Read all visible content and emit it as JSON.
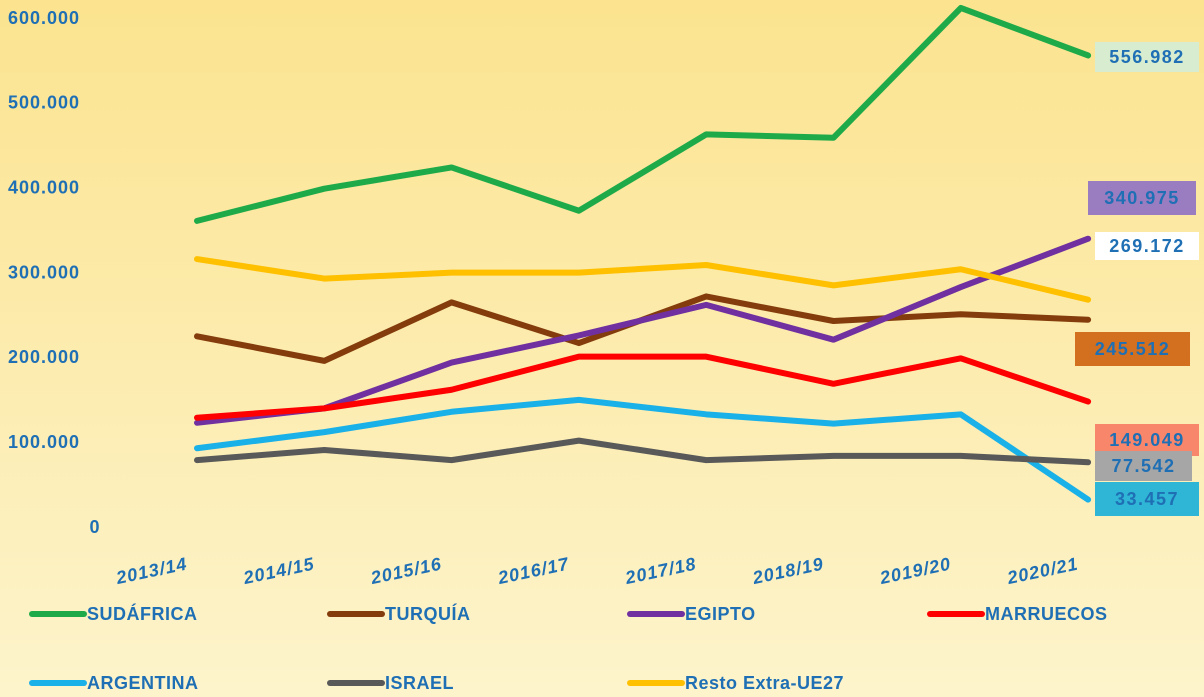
{
  "chart_data": {
    "type": "line",
    "categories": [
      "2013/14",
      "2014/15",
      "2015/16",
      "2016/17",
      "2017/18",
      "2018/19",
      "2019/20",
      "2020/21"
    ],
    "ylim": [
      0,
      600000
    ],
    "yticks": [
      0,
      {
        "value": 100000,
        "label": "100.000"
      },
      {
        "value": 200000,
        "label": "200.000"
      },
      {
        "value": 300000,
        "label": "300.000"
      },
      {
        "value": 400000,
        "label": "400.000"
      },
      {
        "value": 500000,
        "label": "500.000"
      },
      {
        "value": 600000,
        "label": "600.000"
      }
    ],
    "grid": false,
    "series": [
      {
        "name": "SUDÁFRICA",
        "color": "#1faa4a",
        "values": [
          362000,
          400000,
          425000,
          374000,
          464000,
          460000,
          613000,
          556982
        ],
        "value_labels": [
          null,
          null,
          null,
          null,
          null,
          null,
          null,
          "556.982"
        ]
      },
      {
        "name": "TURQUÍA",
        "color": "#843c0c",
        "values": [
          226000,
          197000,
          266000,
          218000,
          273000,
          244000,
          252000,
          245512
        ],
        "value_labels": [
          null,
          null,
          null,
          null,
          null,
          null,
          null,
          "245.512"
        ]
      },
      {
        "name": "EGIPTO",
        "color": "#7030a0",
        "values": [
          124000,
          141000,
          195000,
          227000,
          263000,
          222000,
          284000,
          340975
        ],
        "value_labels": [
          null,
          null,
          null,
          null,
          null,
          null,
          null,
          "340.975"
        ]
      },
      {
        "name": "MARRUECOS",
        "color": "#ff0000",
        "values": [
          130000,
          141000,
          163000,
          202000,
          202000,
          170000,
          200000,
          149049
        ],
        "value_labels": [
          null,
          null,
          null,
          null,
          null,
          null,
          null,
          "149.049"
        ]
      },
      {
        "name": "ARGENTINA",
        "color": "#1ab0e8",
        "values": [
          94000,
          113000,
          137000,
          151000,
          134000,
          123000,
          134000,
          33457
        ],
        "value_labels": [
          null,
          null,
          null,
          null,
          null,
          null,
          null,
          "33.457"
        ]
      },
      {
        "name": "ISRAEL",
        "color": "#595959",
        "values": [
          80000,
          92000,
          80000,
          103000,
          80000,
          85000,
          85000,
          77542
        ],
        "value_labels": [
          null,
          null,
          null,
          null,
          null,
          null,
          null,
          "77.542"
        ]
      },
      {
        "name": "Resto Extra-UE27",
        "color": "#ffc000",
        "values": [
          317000,
          294000,
          301000,
          301000,
          310000,
          286000,
          305000,
          269172
        ],
        "value_labels": [
          null,
          null,
          null,
          null,
          null,
          null,
          null,
          "269.172"
        ]
      }
    ]
  }
}
